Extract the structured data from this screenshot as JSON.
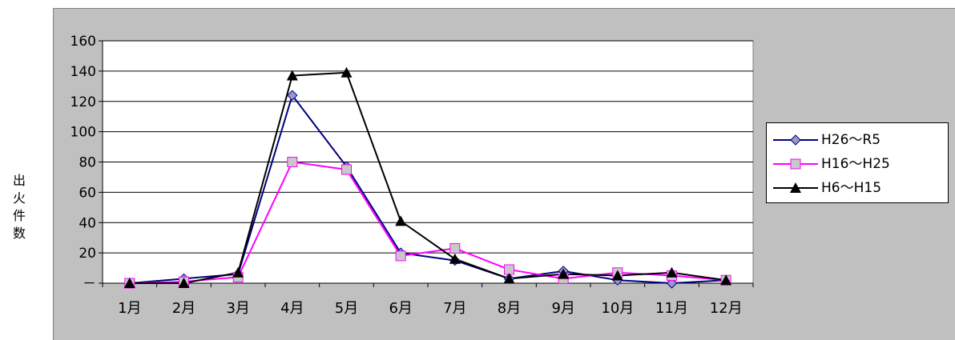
{
  "ylabel": [
    "出",
    "火",
    "件",
    "数"
  ],
  "chart_data": {
    "type": "line",
    "title": "",
    "xlabel": "",
    "ylabel": "出火件数",
    "categories": [
      "1月",
      "2月",
      "3月",
      "4月",
      "5月",
      "6月",
      "7月",
      "8月",
      "9月",
      "10月",
      "11月",
      "12月"
    ],
    "ylim": [
      0,
      160
    ],
    "yticks": [
      "－",
      "20",
      "40",
      "60",
      "80",
      "100",
      "120",
      "140",
      "160"
    ],
    "grid": true,
    "legend_position": "right",
    "series": [
      {
        "name": "H26～R5",
        "color": "#000080",
        "fill": "#9999cc",
        "marker": "diamond",
        "values": [
          0,
          3,
          6,
          124,
          77,
          20,
          15,
          3,
          8,
          2,
          0,
          2
        ]
      },
      {
        "name": "H16～H25",
        "color": "#ff00ff",
        "fill": "#c8c8c8",
        "marker": "square",
        "values": [
          0,
          1,
          4,
          80,
          75,
          18,
          23,
          9,
          3,
          7,
          5,
          2
        ]
      },
      {
        "name": "H6～H15",
        "color": "#000000",
        "fill": "#000000",
        "marker": "triangle",
        "values": [
          0,
          0,
          7,
          137,
          139,
          41,
          16,
          3,
          6,
          5,
          7,
          2
        ]
      }
    ]
  }
}
